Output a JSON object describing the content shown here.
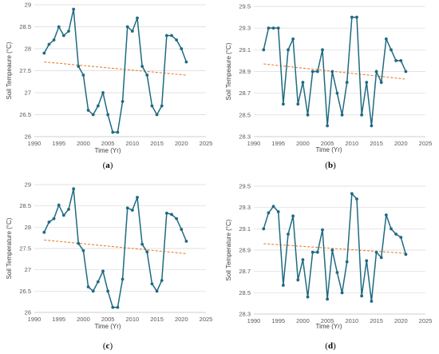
{
  "colors": {
    "series": "#1f6a82",
    "trend": "#ed7d31",
    "grid": "#d9d9d9",
    "axis": "#bfbfbf"
  },
  "chart_data": [
    {
      "panel": "(a)",
      "panel_letter": "a",
      "type": "line",
      "xlabel": "Time (Yr)",
      "ylabel": "Soil Tempeaure (°C)",
      "xlim": [
        1990,
        2025
      ],
      "ylim": [
        26,
        29
      ],
      "xticks": [
        "1990",
        "1995",
        "2000",
        "2005",
        "2010",
        "2015",
        "2020",
        "2025"
      ],
      "yticks": [
        "26",
        "26.5",
        "27",
        "27.5",
        "28",
        "28.5",
        "29"
      ],
      "grid": "horizontal",
      "x": [
        1992,
        1993,
        1994,
        1995,
        1996,
        1997,
        1998,
        1999,
        2000,
        2001,
        2002,
        2003,
        2004,
        2005,
        2006,
        2007,
        2008,
        2009,
        2010,
        2011,
        2012,
        2013,
        2014,
        2015,
        2016,
        2017,
        2018,
        2019,
        2020,
        2021
      ],
      "series": [
        {
          "values": [
            27.9,
            28.1,
            28.2,
            28.5,
            28.3,
            28.4,
            28.9,
            27.6,
            27.4,
            26.6,
            26.5,
            26.7,
            27.0,
            26.5,
            26.1,
            26.1,
            26.8,
            28.5,
            28.4,
            28.7,
            27.6,
            27.4,
            26.7,
            26.5,
            26.7,
            28.3,
            28.3,
            28.2,
            28.0,
            27.7
          ]
        },
        {
          "type": "trendline",
          "values": [
            27.7,
            27.4
          ],
          "x": [
            1992,
            2021
          ]
        }
      ]
    },
    {
      "panel": "(b)",
      "panel_letter": "b",
      "type": "line",
      "xlabel": "Time (Yr)",
      "ylabel": "Soil Tempeaure (°C)",
      "xlim": [
        1990,
        2025
      ],
      "ylim": [
        28.3,
        29.5
      ],
      "xticks": [
        "1990",
        "1995",
        "2000",
        "2005",
        "2010",
        "2015",
        "2020",
        "2025"
      ],
      "yticks": [
        "28.3",
        "28.5",
        "28.7",
        "28.9",
        "29.1",
        "29.3",
        "29.5"
      ],
      "grid": "horizontal",
      "x": [
        1992,
        1993,
        1994,
        1995,
        1996,
        1997,
        1998,
        1999,
        2000,
        2001,
        2002,
        2003,
        2004,
        2005,
        2006,
        2007,
        2008,
        2009,
        2010,
        2011,
        2012,
        2013,
        2014,
        2015,
        2016,
        2017,
        2018,
        2019,
        2020,
        2021
      ],
      "series": [
        {
          "values": [
            29.1,
            29.3,
            29.3,
            29.3,
            28.6,
            29.1,
            29.2,
            28.6,
            28.8,
            28.5,
            28.9,
            28.9,
            29.1,
            28.4,
            28.9,
            28.7,
            28.5,
            28.8,
            29.4,
            29.4,
            28.5,
            28.8,
            28.4,
            28.9,
            28.8,
            29.2,
            29.1,
            29.0,
            29.0,
            28.9
          ]
        },
        {
          "type": "trendline",
          "values": [
            28.97,
            28.83
          ],
          "x": [
            1992,
            2021
          ]
        }
      ]
    },
    {
      "panel": "(c)",
      "panel_letter": "c",
      "type": "line",
      "xlabel": "Time (Yr)",
      "ylabel": "Soil Temperature (°C)",
      "xlim": [
        1990,
        2025
      ],
      "ylim": [
        26,
        29
      ],
      "xticks": [
        "1990",
        "1995",
        "2000",
        "2005",
        "2010",
        "2015",
        "2020",
        "2025"
      ],
      "yticks": [
        "26",
        "26.5",
        "27",
        "27.5",
        "28",
        "28.5",
        "29"
      ],
      "grid": "horizontal",
      "x": [
        1992,
        1993,
        1994,
        1995,
        1996,
        1997,
        1998,
        1999,
        2000,
        2001,
        2002,
        2003,
        2004,
        2005,
        2006,
        2007,
        2008,
        2009,
        2010,
        2011,
        2012,
        2013,
        2014,
        2015,
        2016,
        2017,
        2018,
        2019,
        2020,
        2021
      ],
      "series": [
        {
          "values": [
            27.88,
            28.12,
            28.2,
            28.52,
            28.28,
            28.42,
            28.9,
            27.62,
            27.45,
            26.6,
            26.5,
            26.72,
            26.97,
            26.5,
            26.12,
            26.12,
            26.78,
            28.45,
            28.4,
            28.7,
            27.6,
            27.42,
            26.67,
            26.5,
            26.75,
            28.33,
            28.3,
            28.2,
            27.95,
            27.67
          ]
        },
        {
          "type": "trendline",
          "values": [
            27.7,
            27.38
          ],
          "x": [
            1992,
            2021
          ]
        }
      ]
    },
    {
      "panel": "(d)",
      "panel_letter": "d",
      "type": "line",
      "xlabel": "Time (Yr)",
      "ylabel": "Soil Temperature (°C)",
      "xlim": [
        1990,
        2025
      ],
      "ylim": [
        28.3,
        29.5
      ],
      "xticks": [
        "1990",
        "1995",
        "2000",
        "2005",
        "2010",
        "2015",
        "2020",
        "2025"
      ],
      "yticks": [
        "28.3",
        "28.5",
        "28.7",
        "28.9",
        "29.1",
        "29.3",
        "29.5"
      ],
      "grid": "horizontal",
      "x": [
        1992,
        1993,
        1994,
        1995,
        1996,
        1997,
        1998,
        1999,
        2000,
        2001,
        2002,
        2003,
        2004,
        2005,
        2006,
        2007,
        2008,
        2009,
        2010,
        2011,
        2012,
        2013,
        2014,
        2015,
        2016,
        2017,
        2018,
        2019,
        2020,
        2021
      ],
      "series": [
        {
          "values": [
            29.1,
            29.25,
            29.31,
            29.26,
            28.57,
            29.05,
            29.22,
            28.62,
            28.81,
            28.46,
            28.88,
            28.88,
            29.09,
            28.44,
            28.9,
            28.69,
            28.5,
            28.79,
            29.43,
            29.38,
            28.47,
            28.8,
            28.42,
            28.88,
            28.83,
            29.23,
            29.1,
            29.05,
            29.02,
            28.86
          ]
        },
        {
          "type": "trendline",
          "values": [
            28.96,
            28.87
          ],
          "x": [
            1992,
            2021
          ]
        }
      ]
    }
  ]
}
